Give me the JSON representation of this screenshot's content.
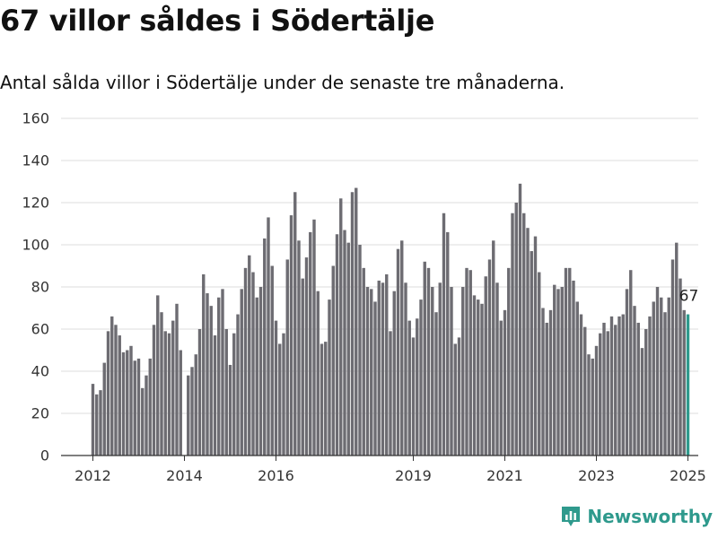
{
  "header": {
    "title": "67 villor såldes i Södertälje",
    "subtitle": "Antal sålda villor i Södertälje under de senaste tre månaderna."
  },
  "brand": {
    "name": "Newsworthy",
    "color": "#2f9a8d",
    "logo_icon": "bar-chart-pin-icon"
  },
  "chart_data": {
    "type": "bar",
    "title": "",
    "xlabel": "",
    "ylabel": "",
    "ylim": [
      0,
      160
    ],
    "yticks": [
      0,
      20,
      40,
      60,
      80,
      100,
      120,
      140,
      160
    ],
    "grid": true,
    "x_tick_labels": [
      {
        "label": "2012",
        "index": 0
      },
      {
        "label": "2014",
        "index": 24
      },
      {
        "label": "2016",
        "index": 48
      },
      {
        "label": "2019",
        "index": 84
      },
      {
        "label": "2021",
        "index": 108
      },
      {
        "label": "2023",
        "index": 132
      },
      {
        "label": "2025",
        "index": 156
      }
    ],
    "bar_color": "#6d6c72",
    "highlight_color": "#2f9a8d",
    "highlight_index": 156,
    "highlight_label": "67",
    "values": [
      34,
      29,
      31,
      44,
      59,
      66,
      62,
      57,
      49,
      50,
      52,
      45,
      46,
      32,
      38,
      46,
      62,
      76,
      68,
      59,
      58,
      64,
      72,
      50,
      0,
      38,
      42,
      48,
      60,
      86,
      77,
      71,
      57,
      75,
      79,
      60,
      43,
      58,
      67,
      79,
      89,
      95,
      87,
      75,
      80,
      103,
      113,
      90,
      64,
      53,
      58,
      93,
      114,
      125,
      102,
      84,
      94,
      106,
      112,
      78,
      53,
      54,
      74,
      90,
      105,
      122,
      107,
      101,
      125,
      127,
      100,
      89,
      80,
      79,
      73,
      83,
      82,
      86,
      59,
      78,
      98,
      102,
      82,
      64,
      56,
      65,
      74,
      92,
      89,
      80,
      68,
      82,
      115,
      106,
      80,
      53,
      56,
      80,
      89,
      88,
      76,
      74,
      72,
      85,
      93,
      102,
      82,
      64,
      69,
      89,
      115,
      120,
      129,
      115,
      108,
      97,
      104,
      87,
      70,
      63,
      69,
      81,
      79,
      80,
      89,
      89,
      83,
      73,
      67,
      61,
      48,
      46,
      52,
      58,
      63,
      59,
      66,
      62,
      66,
      67,
      79,
      88,
      71,
      63,
      51,
      60,
      66,
      73,
      80,
      75,
      68,
      75,
      93,
      101,
      84,
      69,
      67
    ]
  }
}
